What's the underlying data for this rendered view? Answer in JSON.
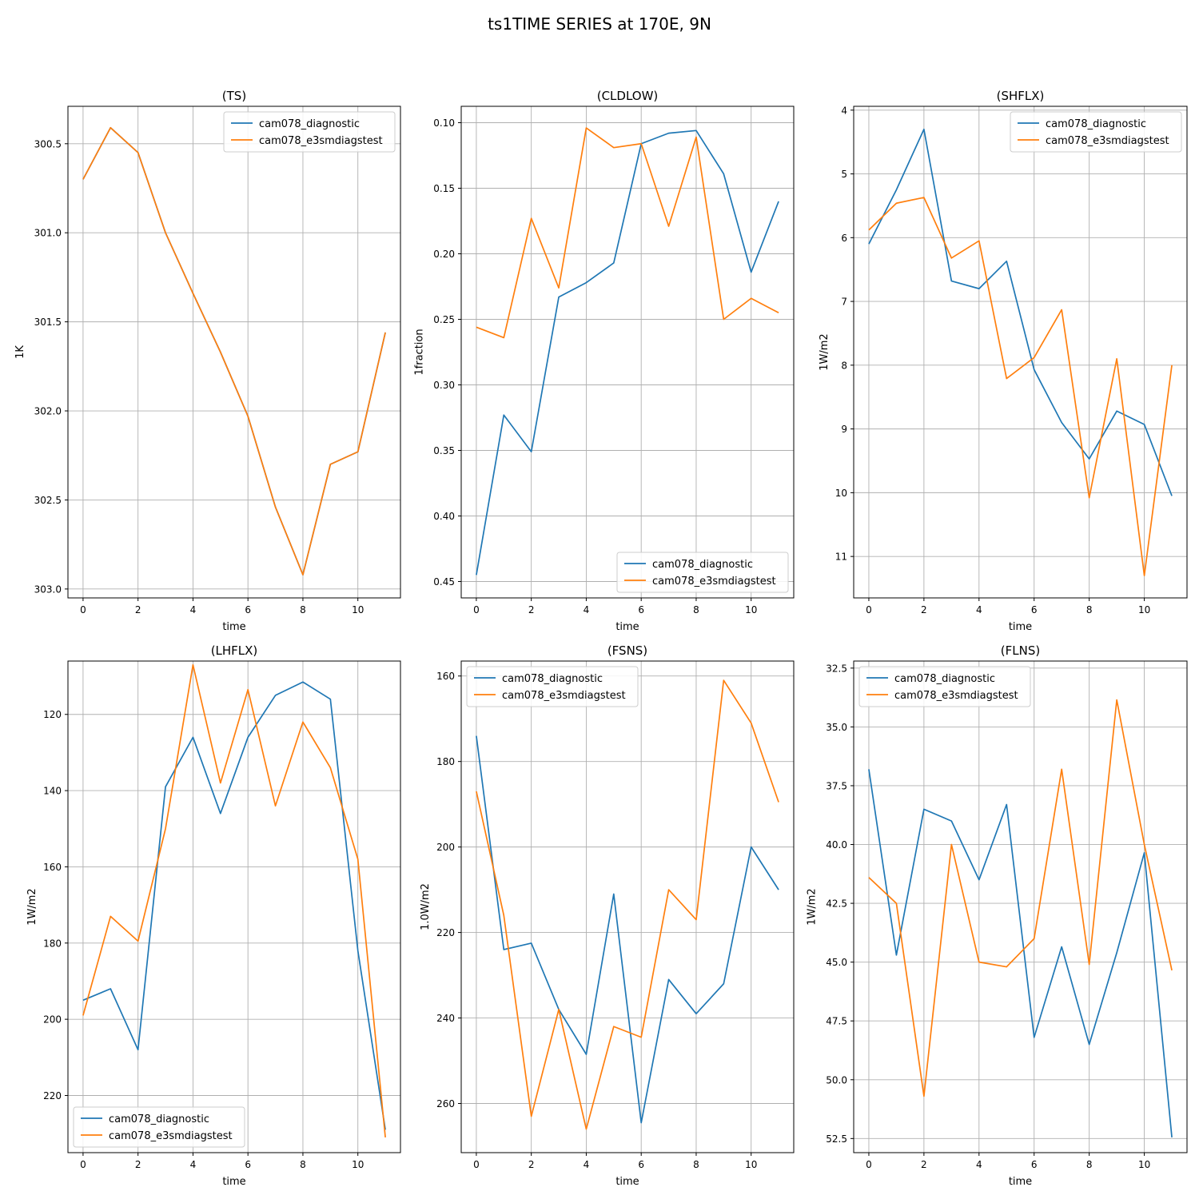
{
  "figure": {
    "title": "ts1TIME SERIES at 170E, 9N"
  },
  "colors": {
    "cam078_diagnostic": "#1f77b4",
    "cam078_e3smdiagstest": "#ff7f0e",
    "grid": "#b0b0b0"
  },
  "chart_data": [
    {
      "type": "line",
      "title": "(TS)",
      "xlabel": "time",
      "ylabel": "1K",
      "y_inverted": true,
      "grid": true,
      "legend": "upper right",
      "xlim": [
        -0.55,
        11.55
      ],
      "ylim": [
        300.29,
        303.05
      ],
      "xticks": [
        0,
        2,
        4,
        6,
        8,
        10
      ],
      "yticks": [
        300.5,
        301.0,
        301.5,
        302.0,
        302.5,
        303.0
      ],
      "ytick_labels": [
        "300.5",
        "301.0",
        "301.5",
        "302.0",
        "302.5",
        "303.0"
      ],
      "x": [
        0,
        1,
        2,
        3,
        4,
        5,
        6,
        7,
        8,
        9,
        10,
        11
      ],
      "series": [
        {
          "name": "cam078_diagnostic",
          "values": [
            300.7,
            300.41,
            300.55,
            301.0,
            301.34,
            301.67,
            302.03,
            302.54,
            302.92,
            302.3,
            302.23,
            301.56
          ]
        },
        {
          "name": "cam078_e3smdiagstest",
          "values": [
            300.7,
            300.41,
            300.55,
            301.0,
            301.34,
            301.67,
            302.03,
            302.54,
            302.92,
            302.3,
            302.23,
            301.56
          ]
        }
      ]
    },
    {
      "type": "line",
      "title": "(CLDLOW)",
      "xlabel": "time",
      "ylabel": "1fraction",
      "y_inverted": true,
      "grid": true,
      "legend": "lower right",
      "xlim": [
        -0.55,
        11.55
      ],
      "ylim": [
        0.0875,
        0.4625
      ],
      "xticks": [
        0,
        2,
        4,
        6,
        8,
        10
      ],
      "yticks": [
        0.1,
        0.15,
        0.2,
        0.25,
        0.3,
        0.35,
        0.4,
        0.45
      ],
      "ytick_labels": [
        "0.10",
        "0.15",
        "0.20",
        "0.25",
        "0.30",
        "0.35",
        "0.40",
        "0.45"
      ],
      "x": [
        0,
        1,
        2,
        3,
        4,
        5,
        6,
        7,
        8,
        9,
        10,
        11
      ],
      "series": [
        {
          "name": "cam078_diagnostic",
          "values": [
            0.445,
            0.323,
            0.351,
            0.233,
            0.222,
            0.207,
            0.116,
            0.108,
            0.106,
            0.139,
            0.214,
            0.16
          ]
        },
        {
          "name": "cam078_e3smdiagstest",
          "values": [
            0.256,
            0.264,
            0.173,
            0.226,
            0.104,
            0.119,
            0.116,
            0.179,
            0.111,
            0.25,
            0.234,
            0.245
          ]
        }
      ]
    },
    {
      "type": "line",
      "title": "(SHFLX)",
      "xlabel": "time",
      "ylabel": "1W/m2",
      "y_inverted": true,
      "grid": true,
      "legend": "upper right",
      "xlim": [
        -0.55,
        11.55
      ],
      "ylim": [
        3.94,
        11.65
      ],
      "xticks": [
        0,
        2,
        4,
        6,
        8,
        10
      ],
      "yticks": [
        4,
        5,
        6,
        7,
        8,
        9,
        10,
        11
      ],
      "ytick_labels": [
        "4",
        "5",
        "6",
        "7",
        "8",
        "9",
        "10",
        "11"
      ],
      "x": [
        0,
        1,
        2,
        3,
        4,
        5,
        6,
        7,
        8,
        9,
        10,
        11
      ],
      "series": [
        {
          "name": "cam078_diagnostic",
          "values": [
            6.1,
            5.25,
            4.3,
            6.68,
            6.8,
            6.37,
            8.07,
            8.9,
            9.47,
            8.72,
            8.93,
            10.05
          ]
        },
        {
          "name": "cam078_e3smdiagstest",
          "values": [
            5.88,
            5.46,
            5.37,
            6.32,
            6.05,
            8.21,
            7.88,
            7.13,
            10.08,
            7.9,
            11.3,
            8.0
          ]
        }
      ]
    },
    {
      "type": "line",
      "title": "(LHFLX)",
      "xlabel": "time",
      "ylabel": "1W/m2",
      "y_inverted": true,
      "grid": true,
      "legend": "lower left",
      "xlim": [
        -0.55,
        11.55
      ],
      "ylim": [
        106.0,
        235.0
      ],
      "xticks": [
        0,
        2,
        4,
        6,
        8,
        10
      ],
      "yticks": [
        120,
        140,
        160,
        180,
        200,
        220
      ],
      "ytick_labels": [
        "120",
        "140",
        "160",
        "180",
        "200",
        "220"
      ],
      "x": [
        0,
        1,
        2,
        3,
        4,
        5,
        6,
        7,
        8,
        9,
        10,
        11
      ],
      "series": [
        {
          "name": "cam078_diagnostic",
          "values": [
            195.0,
            192.0,
            208.0,
            139.0,
            126.0,
            146.0,
            126.0,
            115.0,
            111.5,
            116.0,
            182.0,
            229.0
          ]
        },
        {
          "name": "cam078_e3smdiagstest",
          "values": [
            199.0,
            173.0,
            179.5,
            150.0,
            107.0,
            138.0,
            113.5,
            144.0,
            122.0,
            134.0,
            158.0,
            231.0
          ]
        }
      ]
    },
    {
      "type": "line",
      "title": "(FSNS)",
      "xlabel": "time",
      "ylabel": "1.0W/m2",
      "y_inverted": true,
      "grid": true,
      "legend": "upper left",
      "xlim": [
        -0.55,
        11.55
      ],
      "ylim": [
        156.5,
        271.5
      ],
      "xticks": [
        0,
        2,
        4,
        6,
        8,
        10
      ],
      "yticks": [
        160,
        180,
        200,
        220,
        240,
        260
      ],
      "ytick_labels": [
        "160",
        "180",
        "200",
        "220",
        "240",
        "260"
      ],
      "x": [
        0,
        1,
        2,
        3,
        4,
        5,
        6,
        7,
        8,
        9,
        10,
        11
      ],
      "series": [
        {
          "name": "cam078_diagnostic",
          "values": [
            174.0,
            224.0,
            222.5,
            238.0,
            248.5,
            211.0,
            264.5,
            231.0,
            239.0,
            232.0,
            200.0,
            210.0
          ]
        },
        {
          "name": "cam078_e3smdiagstest",
          "values": [
            187.0,
            216.0,
            263.0,
            238.0,
            266.0,
            242.0,
            244.5,
            210.0,
            217.0,
            161.0,
            171.0,
            189.5
          ]
        }
      ]
    },
    {
      "type": "line",
      "title": "(FLNS)",
      "xlabel": "time",
      "ylabel": "1W/m2",
      "y_inverted": true,
      "grid": true,
      "legend": "upper left",
      "xlim": [
        -0.55,
        11.55
      ],
      "ylim": [
        32.2,
        53.1
      ],
      "xticks": [
        0,
        2,
        4,
        6,
        8,
        10
      ],
      "yticks": [
        32.5,
        35.0,
        37.5,
        40.0,
        42.5,
        45.0,
        47.5,
        50.0,
        52.5
      ],
      "ytick_labels": [
        "32.5",
        "35.0",
        "37.5",
        "40.0",
        "42.5",
        "45.0",
        "47.5",
        "50.0",
        "52.5"
      ],
      "x": [
        0,
        1,
        2,
        3,
        4,
        5,
        6,
        7,
        8,
        9,
        10,
        11
      ],
      "series": [
        {
          "name": "cam078_diagnostic",
          "values": [
            36.8,
            44.7,
            38.5,
            39.0,
            41.5,
            38.3,
            48.2,
            44.35,
            48.5,
            44.6,
            40.35,
            52.45
          ]
        },
        {
          "name": "cam078_e3smdiagstest",
          "values": [
            41.4,
            42.5,
            50.7,
            40.0,
            45.0,
            45.2,
            44.0,
            36.8,
            45.1,
            33.85,
            40.0,
            45.35
          ]
        }
      ]
    }
  ]
}
